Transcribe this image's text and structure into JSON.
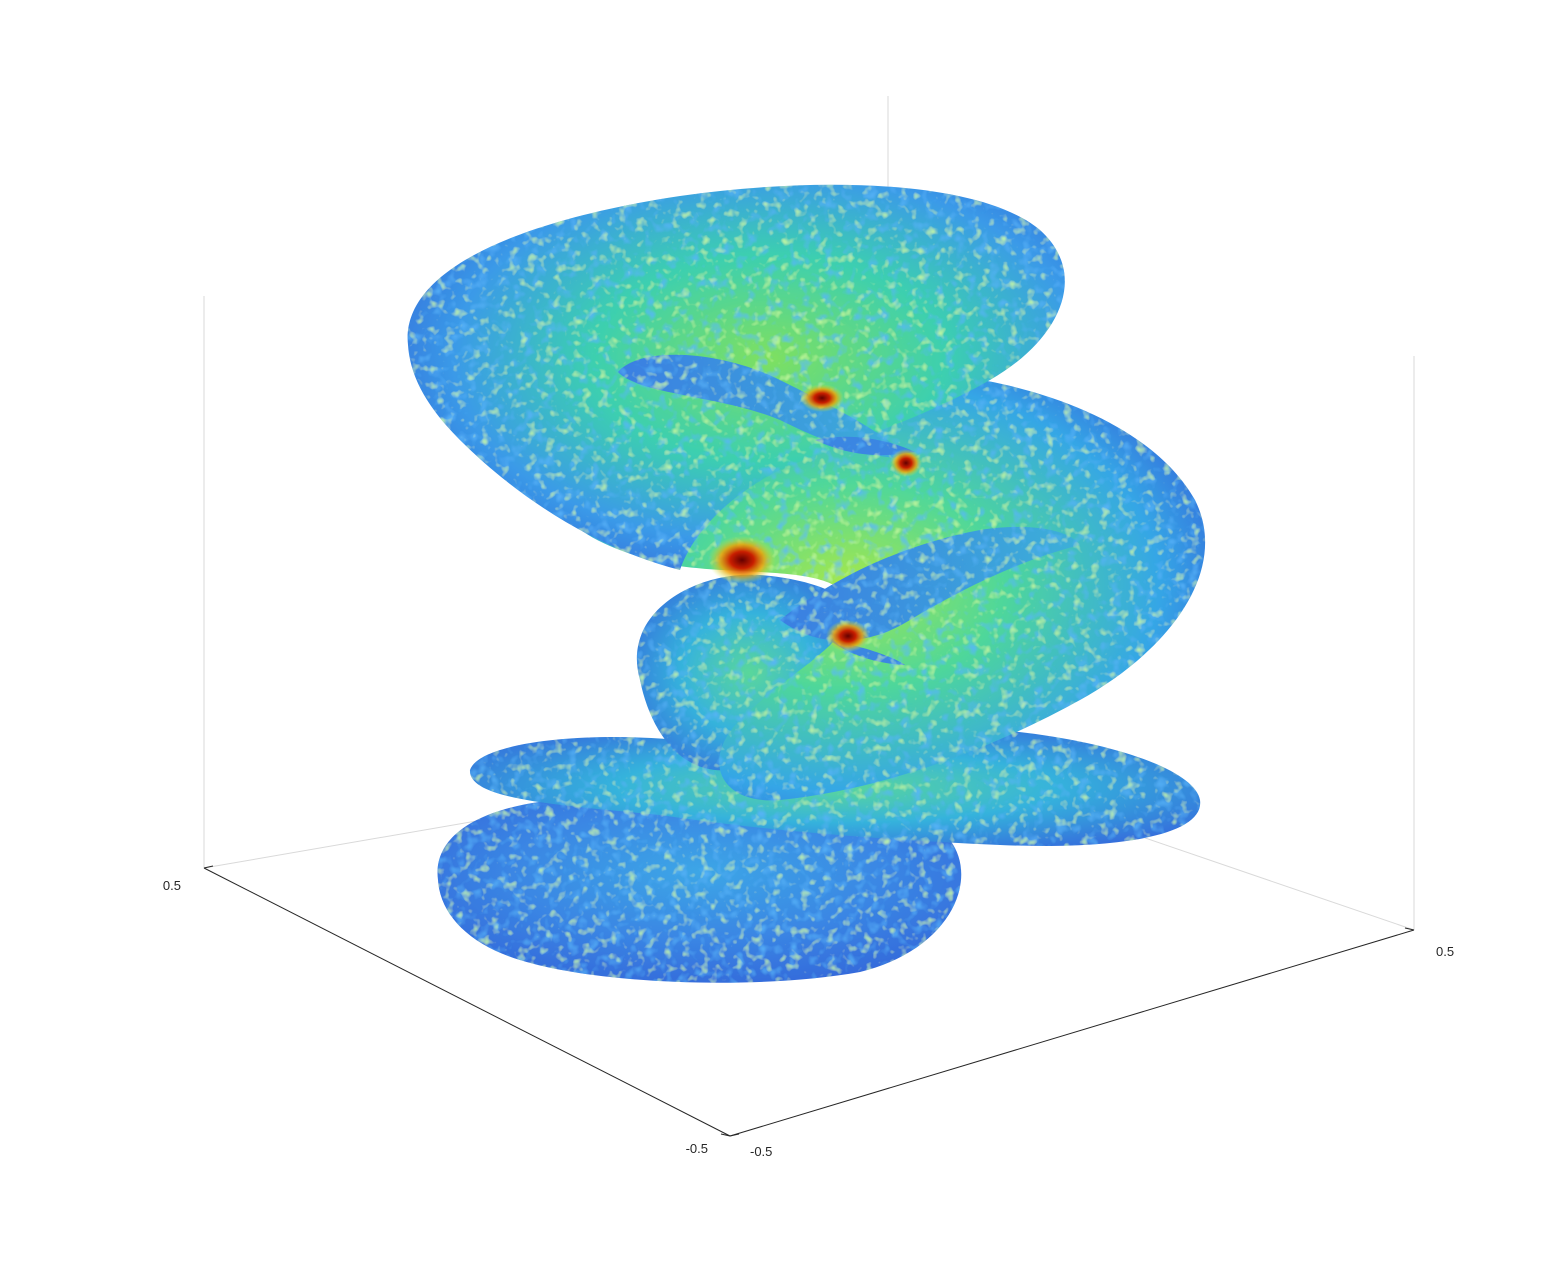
{
  "chart_data": {
    "type": "surface3d",
    "title": "",
    "xlabel": "",
    "ylabel": "",
    "zlabel": "",
    "xlim": [
      -0.5,
      0.5
    ],
    "ylim": [
      -0.5,
      0.5
    ],
    "grid": false,
    "box": "open",
    "colormap": "jet",
    "x_ticks": [
      "-0.5",
      "0.5"
    ],
    "y_ticks": [
      "-0.5",
      "0.5"
    ],
    "colors": {
      "background": "#ffffff",
      "front_axis": "#262626",
      "back_box": "#d9d9d9",
      "jet_dark_blue": "#1f50b4",
      "jet_blue": "#3c8cf0",
      "jet_cyan": "#28c8d2",
      "jet_green": "#46d78c",
      "jet_yellow_green": "#c8f03c",
      "jet_red": "#c81e00",
      "jet_dark_red": "#640000"
    },
    "description_of_surface": "helicoid-like minimal surface with five lobes, colored by a noisy scalar field"
  }
}
